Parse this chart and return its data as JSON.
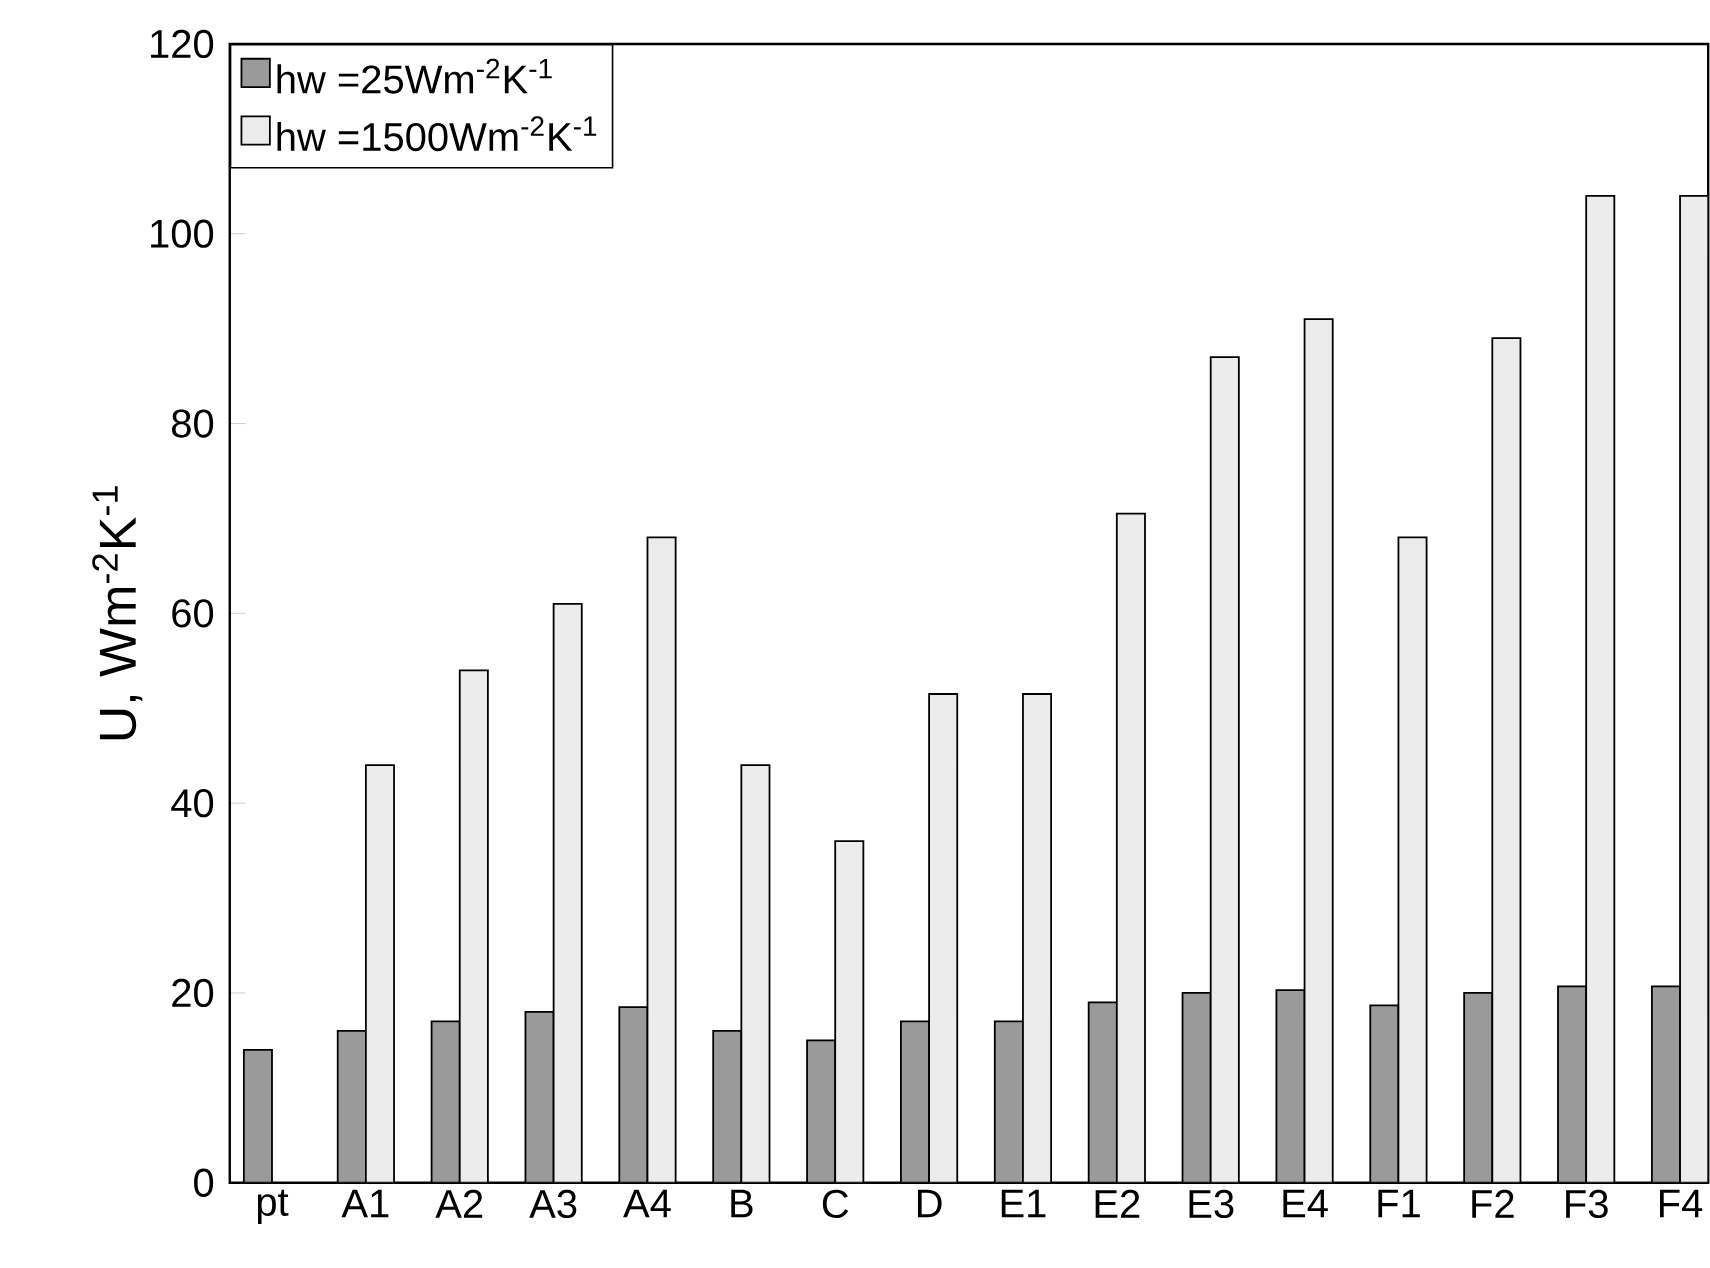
{
  "chart_data": {
    "type": "bar",
    "ylabel": "U, Wm$^{-2}$K$^{-1}$",
    "categories": [
      "pt",
      "A1",
      "A2",
      "A3",
      "A4",
      "B",
      "C",
      "D",
      "E1",
      "E2",
      "E3",
      "E4",
      "F1",
      "F2",
      "F3",
      "F4"
    ],
    "series": [
      {
        "name": "hw =25Wm$^{-2}$K$^{-1}$",
        "color": "#9a9a9a",
        "values": [
          14,
          16,
          17,
          18,
          18.5,
          16,
          15,
          17,
          17,
          19,
          20,
          20.3,
          18.7,
          20,
          20.7,
          20.7
        ]
      },
      {
        "name": "hw =1500Wm$^{-2}$K$^{-1}$",
        "color": "#ececec",
        "values": [
          null,
          44,
          54,
          61,
          68,
          44,
          36,
          51.5,
          51.5,
          70.5,
          87,
          91,
          68,
          89,
          104,
          104
        ]
      }
    ],
    "ylim": [
      0,
      120
    ],
    "yticks": [
      0,
      20,
      40,
      60,
      80,
      100,
      120
    ],
    "grid": false,
    "legend": "top left"
  }
}
